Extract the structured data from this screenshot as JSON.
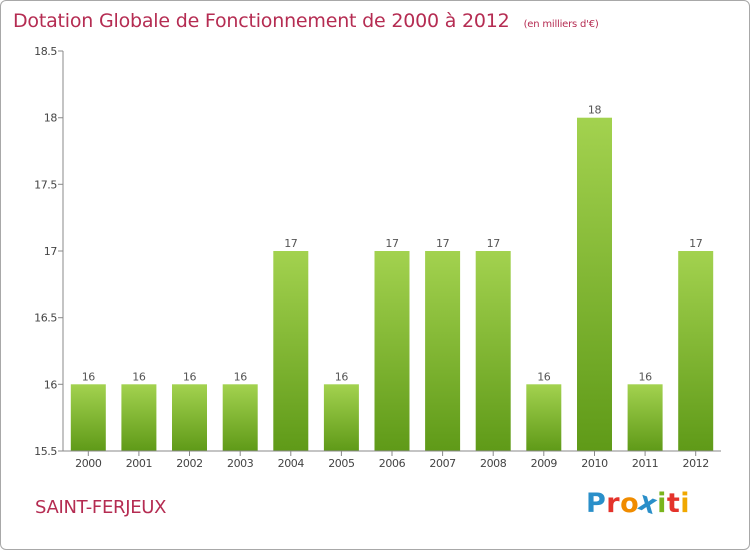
{
  "header": {
    "title": "Dotation Globale de Fonctionnement de 2000 à 2012",
    "subtitle": "(en milliers d'€)"
  },
  "footer": {
    "commune": "SAINT-FERJEUX",
    "logo_letters": [
      "P",
      "r",
      "o",
      "x",
      "i",
      "t",
      "i"
    ]
  },
  "colors": {
    "title": "#b52c52",
    "bar_top": "#a3d24f",
    "bar_bottom": "#5f9a18",
    "axis": "#888888",
    "logo": [
      "#2a8fc9",
      "#e4332b",
      "#f08c00",
      "#2a8fc9",
      "#7ab51d",
      "#e4332b",
      "#f0a800"
    ]
  },
  "chart_data": {
    "type": "bar",
    "title": "Dotation Globale de Fonctionnement de 2000 à 2012",
    "subtitle": "(en milliers d'€)",
    "categories": [
      "2000",
      "2001",
      "2002",
      "2003",
      "2004",
      "2005",
      "2006",
      "2007",
      "2008",
      "2009",
      "2010",
      "2011",
      "2012"
    ],
    "values": [
      16,
      16,
      16,
      16,
      17,
      16,
      17,
      17,
      17,
      16,
      18,
      16,
      17
    ],
    "data_labels": [
      "16",
      "16",
      "16",
      "16",
      "17",
      "16",
      "17",
      "17",
      "17",
      "16",
      "18",
      "16",
      "17"
    ],
    "ylim": [
      15.5,
      18.5
    ],
    "yticks": [
      15.5,
      16,
      16.5,
      17,
      17.5,
      18,
      18.5
    ],
    "ytick_labels": [
      "15.5",
      "16",
      "16.5",
      "17",
      "17.5",
      "18",
      "18.5"
    ],
    "xlabel": "",
    "ylabel": "",
    "grid": false
  }
}
